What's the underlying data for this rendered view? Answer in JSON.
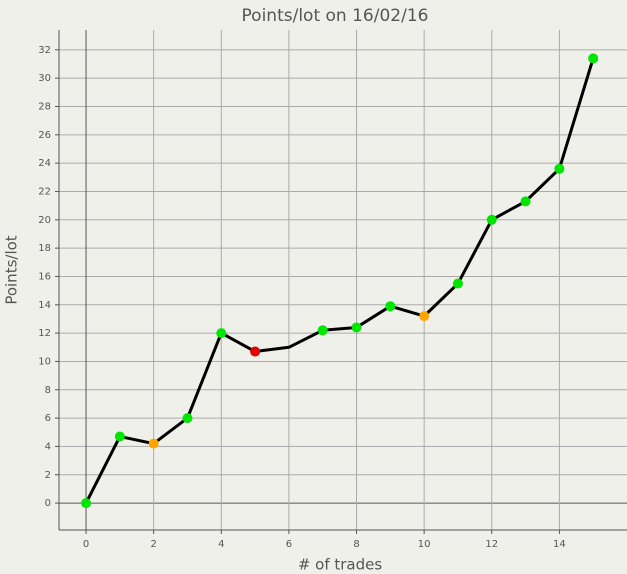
{
  "chart_data": {
    "type": "line",
    "title": "Points/lot on 16/02/16",
    "x_label": "# of trades",
    "y_label": "Points/lot",
    "x": [
      0,
      1,
      2,
      3,
      4,
      5,
      6,
      7,
      8,
      9,
      10,
      11,
      12,
      13,
      14,
      15
    ],
    "series": [
      {
        "color": "#000000",
        "values": [
          0,
          4.7,
          4.2,
          6.0,
          12.0,
          10.7,
          11.0,
          12.2,
          12.4,
          13.9,
          13.2,
          15.5,
          20.0,
          21.3,
          23.6,
          31.4
        ],
        "marker_colors": [
          "#00e600",
          "#00e600",
          "#ffa500",
          "#00e600",
          "#00e600",
          "#e60000",
          null,
          "#00e600",
          "#00e600",
          "#00e600",
          "#ffa500",
          "#00e600",
          "#00e600",
          "#00e600",
          "#00e600",
          "#00e600"
        ]
      }
    ],
    "xlim": [
      -0.8,
      16
    ],
    "ylim": [
      -1.9,
      33.4
    ],
    "xticks": [
      0,
      2,
      4,
      6,
      8,
      10,
      12,
      14
    ],
    "yticks": [
      0,
      2,
      4,
      6,
      8,
      10,
      12,
      14,
      16,
      18,
      20,
      22,
      24,
      26,
      28,
      30,
      32
    ],
    "grid": true
  }
}
